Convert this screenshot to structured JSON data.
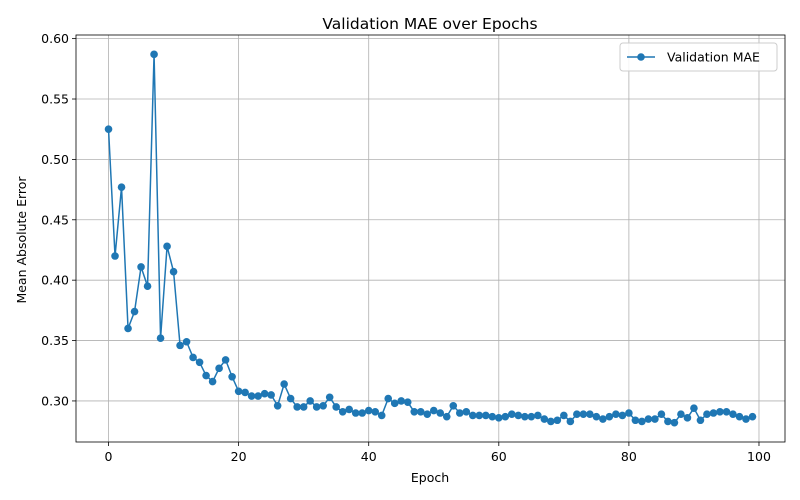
{
  "chart_data": {
    "type": "line",
    "title": "Validation MAE over Epochs",
    "xlabel": "Epoch",
    "ylabel": "Mean Absolute Error",
    "xlim": [
      -5,
      104
    ],
    "ylim": [
      0.266,
      0.603
    ],
    "xticks": [
      0,
      20,
      40,
      60,
      80,
      100
    ],
    "yticks": [
      0.3,
      0.35,
      0.4,
      0.45,
      0.5,
      0.55,
      0.6
    ],
    "grid": true,
    "legend_position": "top-right",
    "series": [
      {
        "name": "Validation MAE",
        "color": "#1f77b4",
        "marker": "circle",
        "x": [
          0,
          1,
          2,
          3,
          4,
          5,
          6,
          7,
          8,
          9,
          10,
          11,
          12,
          13,
          14,
          15,
          16,
          17,
          18,
          19,
          20,
          21,
          22,
          23,
          24,
          25,
          26,
          27,
          28,
          29,
          30,
          31,
          32,
          33,
          34,
          35,
          36,
          37,
          38,
          39,
          40,
          41,
          42,
          43,
          44,
          45,
          46,
          47,
          48,
          49,
          50,
          51,
          52,
          53,
          54,
          55,
          56,
          57,
          58,
          59,
          60,
          61,
          62,
          63,
          64,
          65,
          66,
          67,
          68,
          69,
          70,
          71,
          72,
          73,
          74,
          75,
          76,
          77,
          78,
          79,
          80,
          81,
          82,
          83,
          84,
          85,
          86,
          87,
          88,
          89,
          90,
          91,
          92,
          93,
          94,
          95,
          96,
          97,
          98,
          99
        ],
        "values": [
          0.525,
          0.42,
          0.477,
          0.36,
          0.374,
          0.411,
          0.395,
          0.587,
          0.352,
          0.428,
          0.407,
          0.346,
          0.349,
          0.336,
          0.332,
          0.321,
          0.316,
          0.327,
          0.334,
          0.32,
          0.308,
          0.307,
          0.304,
          0.304,
          0.306,
          0.305,
          0.296,
          0.314,
          0.302,
          0.295,
          0.295,
          0.3,
          0.295,
          0.296,
          0.303,
          0.295,
          0.291,
          0.293,
          0.29,
          0.29,
          0.292,
          0.291,
          0.288,
          0.302,
          0.298,
          0.3,
          0.299,
          0.291,
          0.291,
          0.289,
          0.292,
          0.29,
          0.287,
          0.296,
          0.29,
          0.291,
          0.288,
          0.288,
          0.288,
          0.287,
          0.286,
          0.287,
          0.289,
          0.288,
          0.287,
          0.287,
          0.288,
          0.285,
          0.283,
          0.284,
          0.288,
          0.283,
          0.289,
          0.289,
          0.289,
          0.287,
          0.285,
          0.287,
          0.289,
          0.288,
          0.29,
          0.284,
          0.283,
          0.285,
          0.285,
          0.289,
          0.283,
          0.282,
          0.289,
          0.286,
          0.294,
          0.284,
          0.289,
          0.29,
          0.291,
          0.291,
          0.289,
          0.287,
          0.285,
          0.287
        ]
      }
    ]
  }
}
